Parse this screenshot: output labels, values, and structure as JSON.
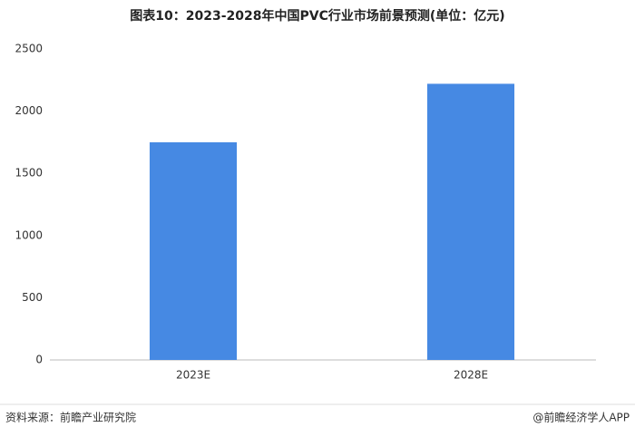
{
  "chart_data": {
    "type": "bar",
    "title": "图表10：2023-2028年中国PVC行业市场前景预测(单位：亿元)",
    "categories": [
      "2023E",
      "2028E"
    ],
    "values": [
      1750,
      2220
    ],
    "color": "#4689e3",
    "ylim": [
      0,
      2500
    ],
    "yticks": [
      0,
      500,
      1000,
      1500,
      2000,
      2500
    ],
    "grid": false
  },
  "footer": {
    "source": "资料来源：前瞻产业研究院",
    "brand": "@前瞻经济学人APP"
  }
}
